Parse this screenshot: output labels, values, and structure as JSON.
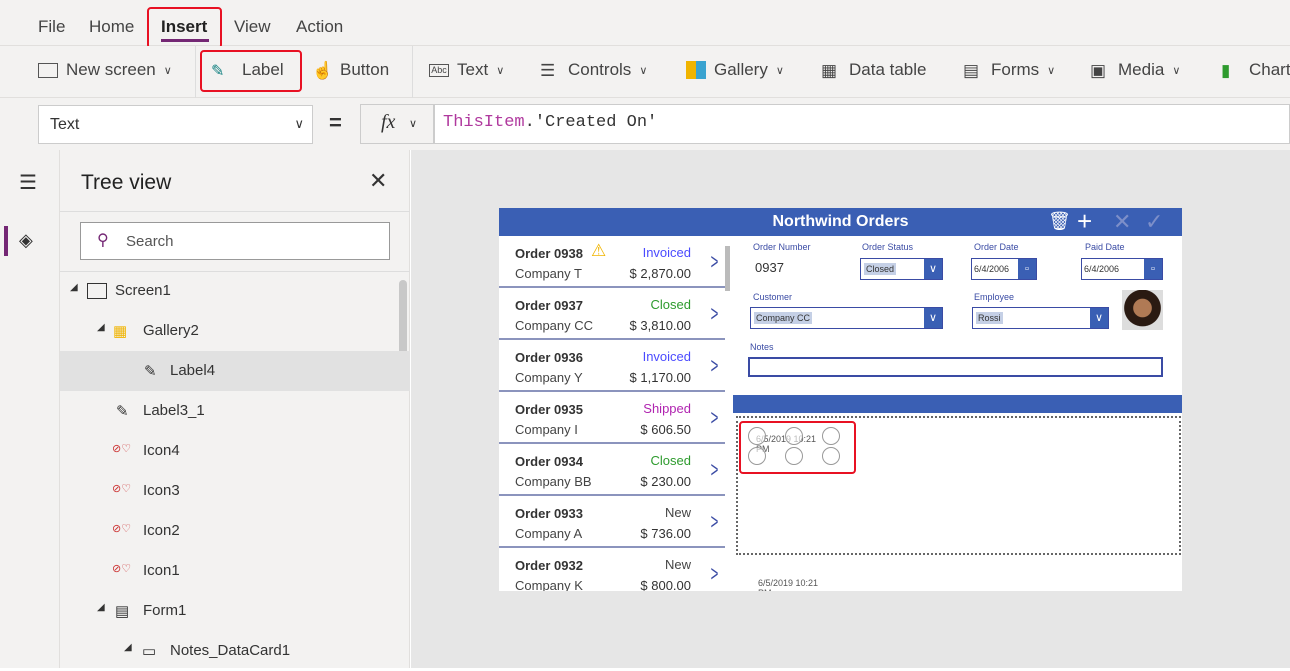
{
  "menu": [
    "File",
    "Home",
    "Insert",
    "View",
    "Action"
  ],
  "active_menu": "Insert",
  "toolbar": {
    "new_screen": "New screen",
    "label": "Label",
    "button": "Button",
    "text": "Text",
    "controls": "Controls",
    "gallery": "Gallery",
    "data_table": "Data table",
    "forms": "Forms",
    "media": "Media",
    "charts": "Charts"
  },
  "formula": {
    "property": "Text",
    "equals": "=",
    "fx": "fx",
    "expression_obj": "ThisItem",
    "expression_rest": ".'Created On'"
  },
  "tree": {
    "title": "Tree view",
    "search_placeholder": "Search",
    "nodes": [
      "Screen1",
      "Gallery2",
      "Label4",
      "Label3_1",
      "Icon4",
      "Icon3",
      "Icon2",
      "Icon1",
      "Form1",
      "Notes_DataCard1"
    ],
    "selected": "Label4"
  },
  "app": {
    "title": "Northwind Orders",
    "orders": [
      {
        "order": "Order 0938",
        "company": "Company T",
        "status": "Invoiced",
        "price": "$ 2,870.00",
        "warning": true
      },
      {
        "order": "Order 0937",
        "company": "Company CC",
        "status": "Closed",
        "price": "$ 3,810.00"
      },
      {
        "order": "Order 0936",
        "company": "Company Y",
        "status": "Invoiced",
        "price": "$ 1,170.00"
      },
      {
        "order": "Order 0935",
        "company": "Company I",
        "status": "Shipped",
        "price": "$ 606.50"
      },
      {
        "order": "Order 0934",
        "company": "Company BB",
        "status": "Closed",
        "price": "$ 230.00"
      },
      {
        "order": "Order 0933",
        "company": "Company A",
        "status": "New",
        "price": "$ 736.00"
      },
      {
        "order": "Order 0932",
        "company": "Company K",
        "status": "New",
        "price": "$ 800.00"
      }
    ],
    "status_colors": {
      "Invoiced": "#4b4bff",
      "Closed": "#2e9b2e",
      "Shipped": "#b024b0",
      "New": "#444444"
    },
    "form": {
      "order_number_label": "Order Number",
      "order_number": "0937",
      "order_status_label": "Order Status",
      "order_status": "Closed",
      "order_date_label": "Order Date",
      "order_date": "6/4/2006",
      "paid_date_label": "Paid Date",
      "paid_date": "6/4/2006",
      "customer_label": "Customer",
      "customer": "Company CC",
      "employee_label": "Employee",
      "employee": "Rossi",
      "notes_label": "Notes",
      "notes": ""
    },
    "label_in_gallery": "6/5/2019 10:21 PM",
    "label_below": "6/5/2019 10:21 PM"
  },
  "colors": {
    "header": "#3a5fb4",
    "accent": "#742774",
    "highlight": "#e81123"
  }
}
